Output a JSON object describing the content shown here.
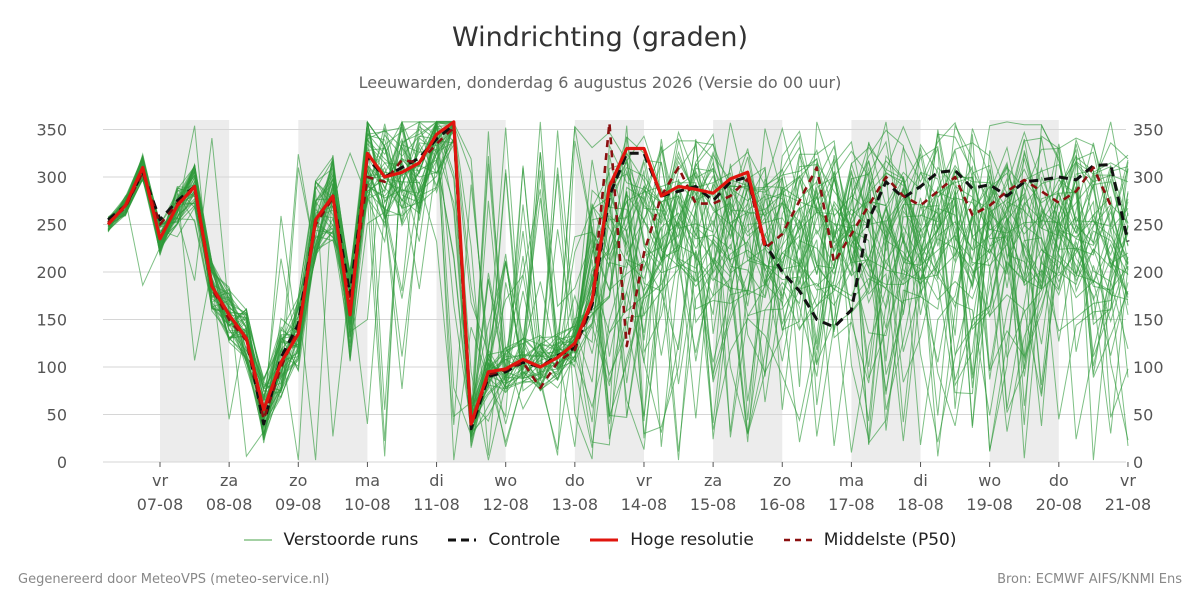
{
  "title": "Windrichting (graden)",
  "subtitle": "Leeuwarden, donderdag  6 augustus 2026 (Versie do 00 uur)",
  "footer_left": "Gegenereerd door MeteoVPS (meteo-service.nl)",
  "footer_right": "Bron: ECMWF AIFS/KNMI Ens",
  "legend": [
    {
      "label": "Verstoorde runs",
      "color": "#4aa34a",
      "style": "thin"
    },
    {
      "label": "Controle",
      "color": "#111111",
      "style": "dashed"
    },
    {
      "label": "Hoge resolutie",
      "color": "#e0150e",
      "style": "solid"
    },
    {
      "label": "Middelste (P50)",
      "color": "#8b1010",
      "style": "dashed"
    }
  ],
  "chart_data": {
    "type": "line",
    "ylim": [
      0,
      360
    ],
    "yticks": [
      0,
      50,
      100,
      150,
      200,
      250,
      300,
      350
    ],
    "x_start_day": -0.75,
    "x_end_day": 14,
    "x_step_hours": 6,
    "xticks": [
      {
        "day": "vr",
        "date": "07-08"
      },
      {
        "day": "za",
        "date": "08-08"
      },
      {
        "day": "zo",
        "date": "09-08"
      },
      {
        "day": "ma",
        "date": "10-08"
      },
      {
        "day": "di",
        "date": "11-08"
      },
      {
        "day": "wo",
        "date": "12-08"
      },
      {
        "day": "do",
        "date": "13-08"
      },
      {
        "day": "vr",
        "date": "14-08"
      },
      {
        "day": "za",
        "date": "15-08"
      },
      {
        "day": "zo",
        "date": "16-08"
      },
      {
        "day": "ma",
        "date": "17-08"
      },
      {
        "day": "di",
        "date": "18-08"
      },
      {
        "day": "wo",
        "date": "19-08"
      },
      {
        "day": "do",
        "date": "20-08"
      },
      {
        "day": "vr",
        "date": "21-08"
      }
    ],
    "weekend_shading_days": [
      [
        0,
        1
      ],
      [
        2,
        3
      ],
      [
        4,
        5
      ],
      [
        6,
        7
      ],
      [
        8,
        9
      ],
      [
        10,
        11
      ],
      [
        12,
        13
      ]
    ],
    "grid": true,
    "series": [
      {
        "name": "Hoge resolutie",
        "color": "#e0150e",
        "values": [
          250,
          270,
          310,
          235,
          270,
          290,
          185,
          155,
          130,
          55,
          105,
          135,
          255,
          280,
          155,
          325,
          300,
          305,
          315,
          345,
          358,
          40,
          95,
          98,
          108,
          100,
          110,
          125,
          170,
          290,
          330,
          330,
          280,
          290,
          287,
          283,
          298,
          305,
          228
        ]
      },
      {
        "name": "Controle",
        "color": "#111111",
        "dash": true,
        "values": [
          255,
          270,
          305,
          255,
          275,
          290,
          185,
          155,
          130,
          40,
          110,
          145,
          255,
          280,
          175,
          320,
          300,
          310,
          320,
          340,
          355,
          35,
          90,
          95,
          105,
          100,
          112,
          120,
          165,
          280,
          325,
          325,
          280,
          285,
          290,
          275,
          295,
          300,
          230,
          200,
          180,
          150,
          142,
          160,
          255,
          295,
          278,
          290,
          305,
          307,
          288,
          292,
          280,
          295,
          297,
          300,
          297,
          312,
          313,
          232
        ]
      },
      {
        "name": "Middelste (P50)",
        "color": "#8b1010",
        "dash": true,
        "values": [
          252,
          268,
          305,
          250,
          272,
          288,
          183,
          150,
          128,
          45,
          100,
          140,
          250,
          278,
          165,
          300,
          295,
          318,
          315,
          335,
          352,
          38,
          92,
          97,
          105,
          78,
          105,
          118,
          168,
          357,
          122,
          220,
          280,
          310,
          272,
          272,
          280,
          298,
          225,
          240,
          275,
          310,
          210,
          240,
          270,
          300,
          280,
          270,
          285,
          300,
          260,
          270,
          285,
          297,
          285,
          273,
          285,
          310,
          270
        ]
      }
    ]
  }
}
